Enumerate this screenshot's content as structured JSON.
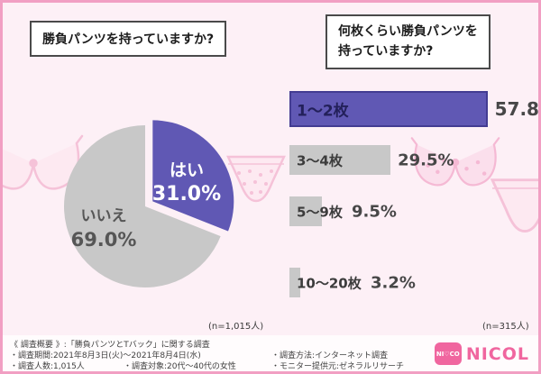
{
  "page": {
    "background": "#fdf0f6",
    "frame_color": "#f19fc3",
    "accent_purple": "#6058b4",
    "accent_purple_dark": "#433c92",
    "bar_gray": "#c8c8c8",
    "logo_pink": "#f0669f"
  },
  "headers": {
    "left_question": "勝負パンツを持っていますか?",
    "right_question_line1": "何枚くらい勝負パンツを",
    "right_question_line2": "持っていますか?"
  },
  "chart_data": [
    {
      "type": "pie",
      "title": "勝負パンツを持っていますか?",
      "labels": [
        "はい",
        "いいえ"
      ],
      "values": [
        31.0,
        69.0
      ],
      "colors": [
        "#6058b4",
        "#c8c8c8"
      ],
      "label_colors": [
        "#ffffff",
        "#565656"
      ],
      "exploded_slice": "はい",
      "sample_note": "(n=1,015人)"
    },
    {
      "type": "bar",
      "title": "何枚くらい勝負パンツを持っていますか?",
      "orientation": "horizontal",
      "categories": [
        "1〜2枚",
        "3〜4枚",
        "5〜9枚",
        "10〜20枚"
      ],
      "values": [
        57.8,
        29.5,
        9.5,
        3.2
      ],
      "unit": "%",
      "bar_colors": [
        "#6058b4",
        "#c8c8c8",
        "#c8c8c8",
        "#c8c8c8"
      ],
      "sample_note": "(n=315人)"
    }
  ],
  "survey_overview": {
    "title_line": "《 調査概要 》:「勝負パンツとTバック」に関する調査",
    "period": "・調査期間:2021年8月3日(火)〜2021年8月4日(水)",
    "method": "・調査方法:インターネット調査",
    "count": "・調査人数:1,015人",
    "target": "・調査対象:20代〜40代の女性",
    "provider": "・モニター提供元:ゼネラルリサーチ"
  },
  "logo": {
    "badge_text": "NI♡CO",
    "wordmark": "NICOL"
  }
}
